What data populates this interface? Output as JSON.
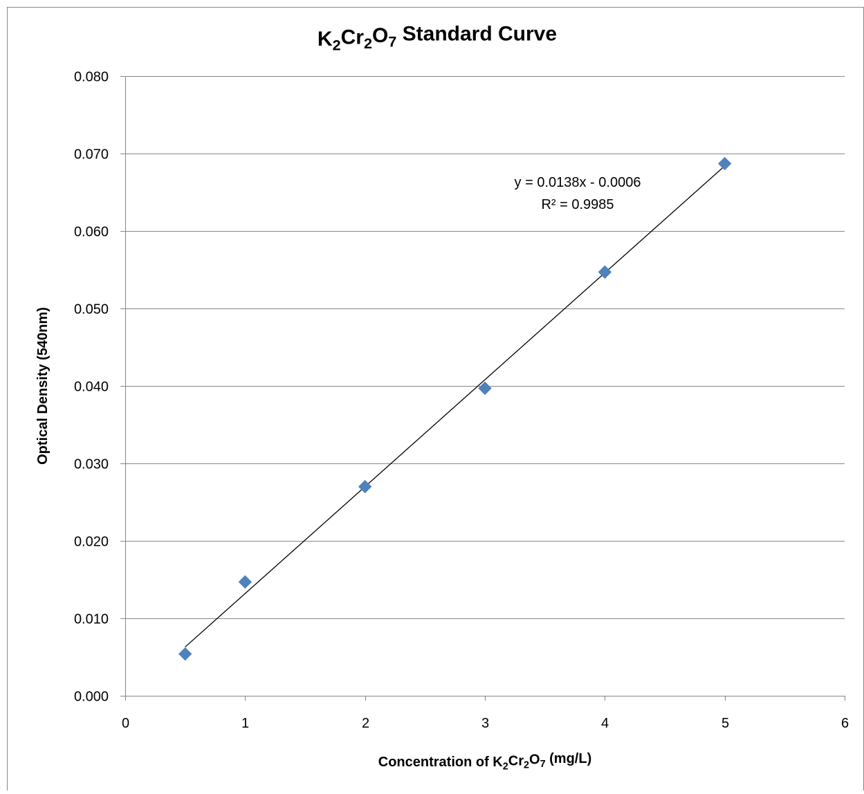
{
  "chart_data": {
    "type": "scatter",
    "title": {
      "parts": [
        {
          "text": "K",
          "sub": false
        },
        {
          "text": "2",
          "sub": true
        },
        {
          "text": "Cr",
          "sub": false
        },
        {
          "text": "2",
          "sub": true
        },
        {
          "text": "O",
          "sub": false
        },
        {
          "text": "7",
          "sub": true
        },
        {
          "text": " Standard Curve",
          "sub": false
        }
      ]
    },
    "xlabel": {
      "parts": [
        {
          "text": "Concentration of K",
          "sub": false
        },
        {
          "text": "2",
          "sub": true
        },
        {
          "text": "Cr",
          "sub": false
        },
        {
          "text": "2",
          "sub": true
        },
        {
          "text": "O",
          "sub": false
        },
        {
          "text": "7",
          "sub": true
        },
        {
          "text": " (mg/L)",
          "sub": false
        }
      ]
    },
    "ylabel": "Optical Density (540nm)",
    "xlim": [
      0,
      6
    ],
    "ylim": [
      0,
      0.08
    ],
    "x_ticks": [
      "0",
      "1",
      "2",
      "3",
      "4",
      "5",
      "6"
    ],
    "y_ticks": [
      "0.000",
      "0.010",
      "0.020",
      "0.030",
      "0.040",
      "0.050",
      "0.060",
      "0.070",
      "0.080"
    ],
    "grid": {
      "horizontal": true,
      "vertical": false
    },
    "marker": "diamond",
    "series": [
      {
        "x": [
          0.5,
          1,
          2,
          3,
          4,
          5
        ],
        "y": [
          0.0054,
          0.0147,
          0.027,
          0.0397,
          0.0547,
          0.0687
        ]
      }
    ],
    "trendline": {
      "slope": 0.0138,
      "intercept": -0.0006,
      "x_range": [
        0.5,
        5
      ],
      "equation": "y = 0.0138x - 0.0006",
      "r_squared": "R² = 0.9985"
    },
    "colors": {
      "marker": "#4f81bd",
      "trendline": "#000000",
      "grid": "#868686",
      "axis": "#868686"
    }
  }
}
